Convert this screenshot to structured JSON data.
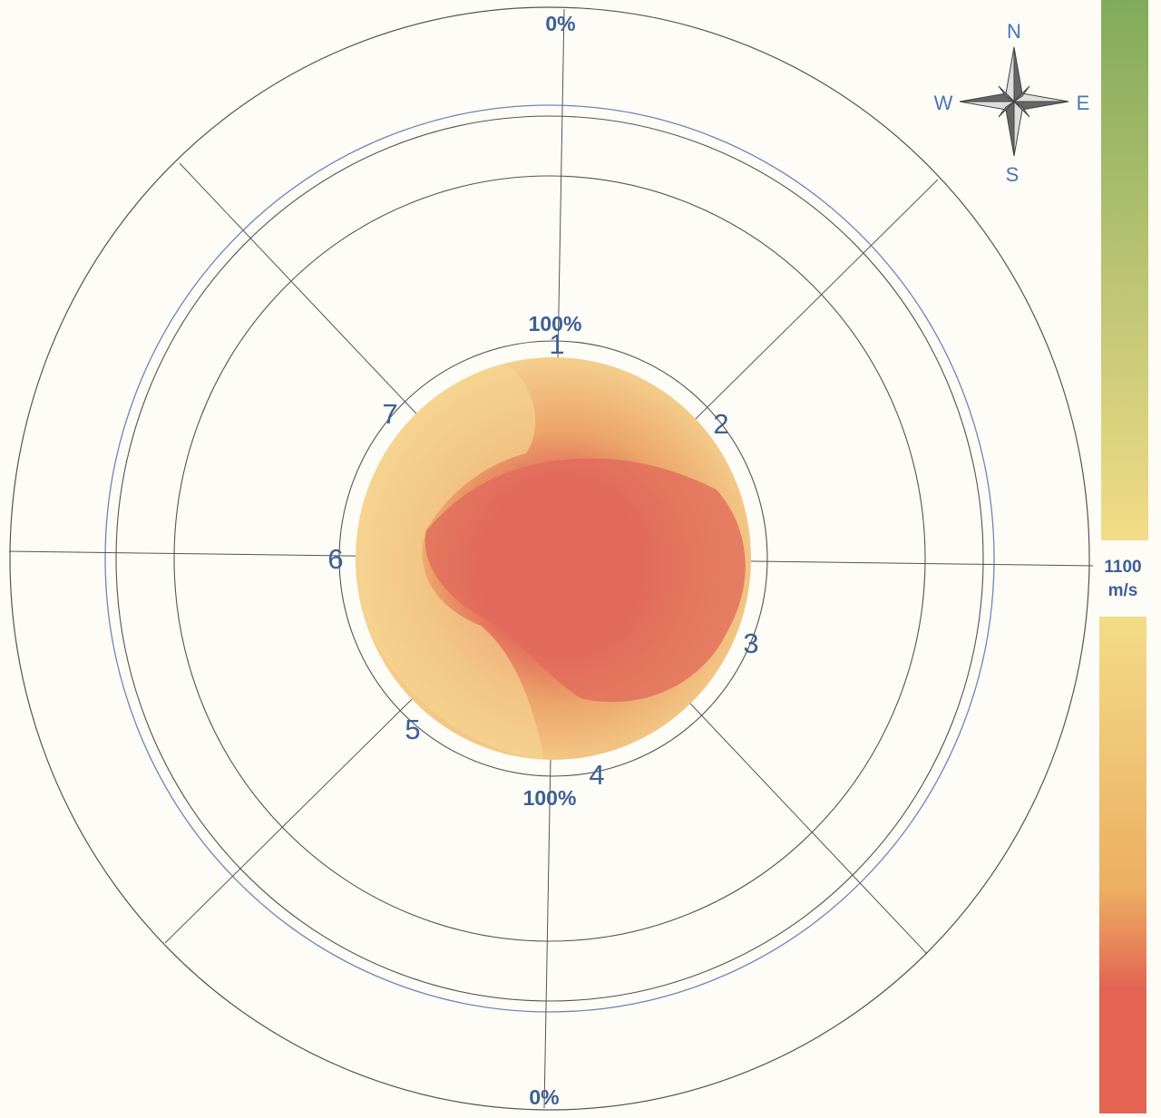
{
  "diagram": {
    "top_outer_label": "0%",
    "bottom_outer_label": "0%",
    "top_inner_label": "100%",
    "bottom_inner_label": "100%",
    "sensors": [
      {
        "label": "1"
      },
      {
        "label": "2"
      },
      {
        "label": "3"
      },
      {
        "label": "4"
      },
      {
        "label": "5"
      },
      {
        "label": "6"
      },
      {
        "label": "7"
      }
    ]
  },
  "compass": {
    "north": "N",
    "south": "S",
    "east": "E",
    "west": "W"
  },
  "color_scale": {
    "value": "1100",
    "unit": "m/s",
    "colors": {
      "green": "#80ab5c",
      "yellow": "#f3dc87",
      "orange": "#ecae63",
      "red": "#e36453"
    }
  },
  "palette": {
    "ring_dark": "#555555",
    "ring_blue": "#6f86b8",
    "velocity_low": "#f6d692",
    "velocity_mid": "#eca66a",
    "velocity_high": "#e26a5b"
  }
}
